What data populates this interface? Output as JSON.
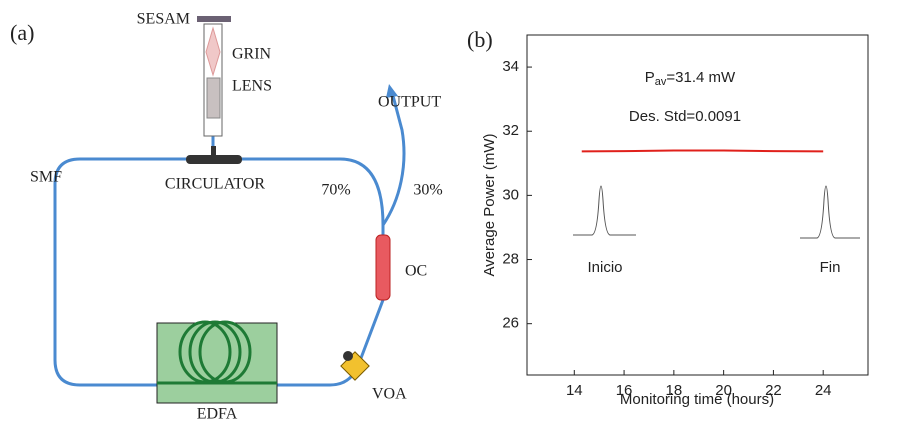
{
  "diagram": {
    "panel_label": "(a)",
    "labels": {
      "sesam": "SESAM",
      "grin": "GRIN",
      "lens": "LENS",
      "output": "OUTPUT",
      "smf": "SMF",
      "circulator": "CIRCULATOR",
      "split_70": "70%",
      "split_30": "30%",
      "oc": "OC",
      "edfa": "EDFA",
      "voa": "VOA"
    }
  },
  "chart_data": {
    "type": "line",
    "panel_label": "(b)",
    "x_label": "Monitoring time (hours)",
    "y_label": "Average Power (mW)",
    "pav_label": {
      "main": "P",
      "subscript": "av",
      "suffix": "=31.4 mW"
    },
    "annotations": [
      "Des. Std=0.0091",
      "Inicio",
      "Fin"
    ],
    "xlim": [
      12.1,
      25.8
    ],
    "xticks": [
      14,
      16,
      18,
      20,
      22,
      24
    ],
    "ylim": [
      24.4,
      35
    ],
    "yticks": [
      26,
      28,
      30,
      32,
      34
    ],
    "x": [
      14.3,
      16,
      18,
      20,
      22,
      24
    ],
    "series": [
      {
        "color": "#e0201b",
        "values": [
          31.37,
          31.38,
          31.4,
          31.4,
          31.38,
          31.37
        ]
      }
    ]
  }
}
